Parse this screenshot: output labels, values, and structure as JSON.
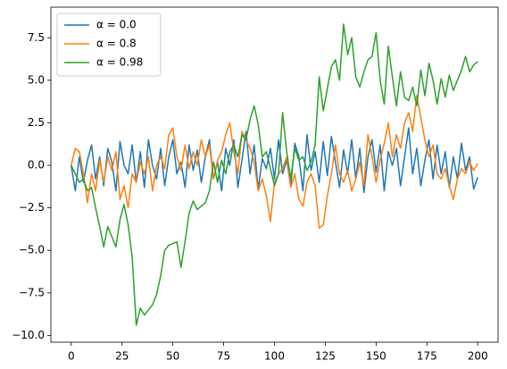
{
  "chart_data": {
    "type": "line",
    "x": [
      0,
      2,
      4,
      6,
      8,
      10,
      12,
      14,
      16,
      18,
      20,
      22,
      24,
      26,
      28,
      30,
      32,
      34,
      36,
      38,
      40,
      42,
      44,
      46,
      48,
      50,
      52,
      54,
      56,
      58,
      60,
      62,
      64,
      66,
      68,
      70,
      72,
      74,
      76,
      78,
      80,
      82,
      84,
      86,
      88,
      90,
      92,
      94,
      96,
      98,
      100,
      102,
      104,
      106,
      108,
      110,
      112,
      114,
      116,
      118,
      120,
      122,
      124,
      126,
      128,
      130,
      132,
      134,
      136,
      138,
      140,
      142,
      144,
      146,
      148,
      150,
      152,
      154,
      156,
      158,
      160,
      162,
      164,
      166,
      168,
      170,
      172,
      174,
      176,
      178,
      180,
      182,
      184,
      186,
      188,
      190,
      192,
      194,
      196,
      198,
      200
    ],
    "series": [
      {
        "name": "α = 0.0",
        "color": "#1f77b4",
        "values": [
          0,
          -1.5,
          0.5,
          -1,
          0.3,
          1.2,
          -0.8,
          0.5,
          -1.2,
          1,
          0.2,
          -1.5,
          1.4,
          0,
          -0.5,
          1.2,
          -1,
          0.8,
          -1.3,
          1.5,
          0,
          -0.8,
          1,
          -1.2,
          0.5,
          1.5,
          -0.5,
          0.2,
          -1.3,
          1.2,
          -0.3,
          0.9,
          -1,
          0.5,
          1.5,
          -0.8,
          0.2,
          -1.5,
          1,
          0,
          1.5,
          -1.3,
          0.3,
          2,
          -0.5,
          1.2,
          -1.4,
          0.4,
          -0.2,
          1,
          -0.8,
          1.5,
          -0.5,
          0.3,
          -1.2,
          1.3,
          0.5,
          -1.5,
          1.8,
          -0.3,
          0.8,
          -1,
          1.4,
          -0.6,
          1.7,
          0.2,
          -1.3,
          0.9,
          -0.5,
          1.5,
          -0.8,
          1,
          -1.6,
          0.5,
          1.5,
          -0.4,
          1.2,
          -1.5,
          0.8,
          0,
          1,
          -1.2,
          0.5,
          2.2,
          -0.5,
          1,
          -1.2,
          0.3,
          1.5,
          -0.8,
          1.2,
          -0.5,
          0.8,
          -1.3,
          0.5,
          -0.8,
          1.3,
          -0.3,
          0.5,
          -1.4,
          -0.7
        ]
      },
      {
        "name": "α = 0.8",
        "color": "#ff7f0e",
        "values": [
          0,
          1,
          0.8,
          -0.5,
          -2.2,
          -0.5,
          -1.5,
          0.3,
          -1,
          0.5,
          -0.3,
          0.8,
          -2,
          -1.2,
          -2.5,
          -0.5,
          -1,
          0.2,
          -0.5,
          0.5,
          -1.5,
          0,
          0.5,
          -0.2,
          1.8,
          2.2,
          0.5,
          -0.3,
          1.2,
          -0.2,
          0.8,
          0,
          1.5,
          0.5,
          1.2,
          -0.8,
          0.3,
          0.8,
          1.8,
          2.5,
          0.8,
          -0.5,
          2,
          1.5,
          1,
          0.2,
          -1.5,
          -0.8,
          -1.8,
          -3.3,
          -1,
          -0.5,
          -0.2,
          0.5,
          -1.3,
          -0.5,
          -2,
          -2.4,
          -1,
          -0.5,
          -1.2,
          -3.7,
          -3.5,
          -1.8,
          -0.5,
          1.2,
          -0.5,
          -1,
          -0.3,
          -1.5,
          -0.8,
          0.2,
          -1.2,
          1.8,
          0.5,
          -1,
          0.3,
          1.3,
          2.5,
          0.5,
          1.8,
          1,
          2.5,
          3.1,
          2,
          4.1,
          2.8,
          1.5,
          0.5,
          1.2,
          -0.5,
          -0.8,
          -0.2,
          -1.2,
          -2,
          -0.8,
          -0.2,
          -0.5,
          0.2,
          -0.3,
          0.1
        ]
      },
      {
        "name": "α = 0.98",
        "color": "#2ca02c",
        "values": [
          0,
          -0.5,
          -1,
          -0.8,
          -1.5,
          -1.3,
          -2.5,
          -3.6,
          -4.8,
          -3.6,
          -4.2,
          -4.8,
          -3.2,
          -2.3,
          -3.5,
          -5.4,
          -9.4,
          -8.4,
          -8.8,
          -8.5,
          -8.2,
          -7.6,
          -6.5,
          -5,
          -4.7,
          -4.6,
          -4.5,
          -6,
          -4.5,
          -2.8,
          -2.1,
          -2.6,
          -2.4,
          -2.2,
          -1.5,
          0.2,
          -1,
          0.3,
          -0.5,
          0.8,
          1.2,
          0.5,
          1.8,
          1.5,
          2.7,
          3.5,
          2.4,
          0.5,
          0.8,
          -0.2,
          -1.2,
          -0.5,
          3.1,
          0.8,
          -0.8,
          1,
          0.3,
          0.5,
          -0.3,
          0.2,
          1.2,
          5.2,
          3.2,
          4.5,
          5.8,
          6.2,
          5,
          8.3,
          6.5,
          7.5,
          5.2,
          4.6,
          5.5,
          6.2,
          6.4,
          7.8,
          5,
          3.6,
          7,
          5.2,
          3.5,
          5.5,
          4,
          3.8,
          4.6,
          3.5,
          5.6,
          4.1,
          6,
          5,
          3.6,
          5.1,
          4,
          5.3,
          4.4,
          5,
          5.6,
          6.4,
          5.5,
          5.9,
          6.1
        ]
      }
    ],
    "xlim": [
      -10,
      210
    ],
    "ylim": [
      -10.4,
      9.3
    ],
    "xticks": [
      0,
      25,
      50,
      75,
      100,
      125,
      150,
      175,
      200
    ],
    "yticks": [
      {
        "value": -10,
        "label": "−10.0"
      },
      {
        "value": -7.5,
        "label": "−7.5"
      },
      {
        "value": -5,
        "label": "−5.0"
      },
      {
        "value": -2.5,
        "label": "−2.5"
      },
      {
        "value": 0,
        "label": "0.0"
      },
      2.5,
      {
        "value": 5,
        "label": "5.0"
      },
      7.5
    ],
    "legend": "upper left"
  }
}
